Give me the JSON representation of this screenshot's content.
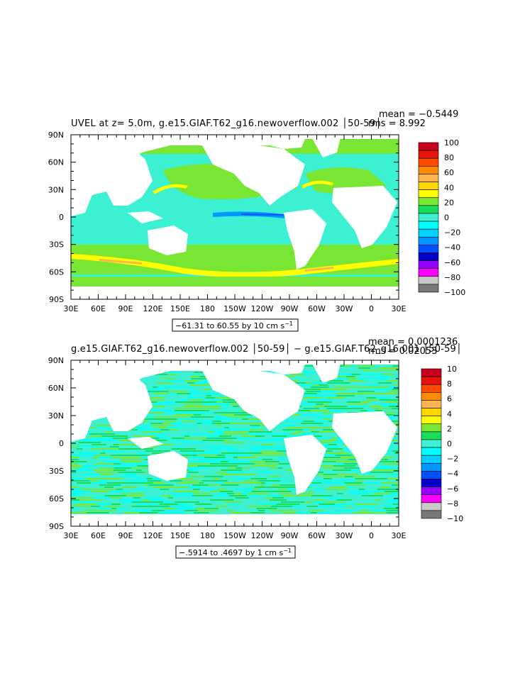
{
  "chart_data": [
    {
      "type": "heatmap",
      "title": "UVEL at z=    5.0m, g.e15.GIAF.T62_g16.newoverflow.002 │50-59│",
      "stats": {
        "mean": "mean = −0.5449",
        "rms": "rms = 8.992"
      },
      "range_label": "−61.31 to 60.55 by 10 cm s",
      "range_unit_sup": "−1",
      "xlabels": [
        "30E",
        "60E",
        "90E",
        "120E",
        "150E",
        "180",
        "150W",
        "120W",
        "90W",
        "60W",
        "30W",
        "0",
        "30E"
      ],
      "ylabels": [
        "90N",
        "60N",
        "30N",
        "0",
        "30S",
        "60S",
        "90S"
      ],
      "xlim": [
        30,
        390
      ],
      "ylim": [
        -90,
        90
      ],
      "colorbar": {
        "labels": [
          "100",
          "80",
          "60",
          "40",
          "20",
          "0",
          "−20",
          "−40",
          "−60",
          "−80",
          "−100"
        ],
        "colors": [
          "#c8001e",
          "#e6140a",
          "#ff4b00",
          "#ff8c00",
          "#ffb450",
          "#ffd700",
          "#ffff00",
          "#78e632",
          "#19dc5a",
          "#3cf0d2",
          "#00ffff",
          "#00d2ff",
          "#0096ff",
          "#0050ff",
          "#0000c8",
          "#9600ff",
          "#ff00ff",
          "#c8c8c8",
          "#787878"
        ]
      }
    },
    {
      "type": "heatmap",
      "title": "g.e15.GIAF.T62_g16.newoverflow.002 │50-59│ − g.e15.GIAF.T62_g16.001 │50-59│",
      "stats": {
        "mean": "mean = 0.0001236",
        "rms": "rms = 0.02053"
      },
      "range_label": "−.5914 to .4697 by 1 cm s",
      "range_unit_sup": "−1",
      "xlabels": [
        "30E",
        "60E",
        "90E",
        "120E",
        "150E",
        "180",
        "150W",
        "120W",
        "90W",
        "60W",
        "30W",
        "0",
        "30E"
      ],
      "ylabels": [
        "90N",
        "60N",
        "30N",
        "0",
        "30S",
        "60S",
        "90S"
      ],
      "xlim": [
        30,
        390
      ],
      "ylim": [
        -90,
        90
      ],
      "colorbar": {
        "labels": [
          "10",
          "8",
          "6",
          "4",
          "2",
          "0",
          "−2",
          "−4",
          "−6",
          "−8",
          "−10"
        ],
        "colors": [
          "#c8001e",
          "#e6140a",
          "#ff4b00",
          "#ff8c00",
          "#ffb450",
          "#ffd700",
          "#ffff00",
          "#78e632",
          "#19dc5a",
          "#3cf0d2",
          "#00ffff",
          "#00d2ff",
          "#0096ff",
          "#0050ff",
          "#0000c8",
          "#9600ff",
          "#ff00ff",
          "#c8c8c8",
          "#787878"
        ]
      }
    }
  ],
  "palette": {
    "ocean_green": "#19dc5a",
    "ocean_light_green": "#78e632",
    "ocean_cyan": "#3cf0d2",
    "ocean_aqua": "#00ffff",
    "jet_blue": "#0096ff",
    "jet_dark_blue": "#0050ff",
    "jet_yellow": "#ffff00",
    "jet_orange": "#ffb450",
    "land": "#ffffff"
  }
}
